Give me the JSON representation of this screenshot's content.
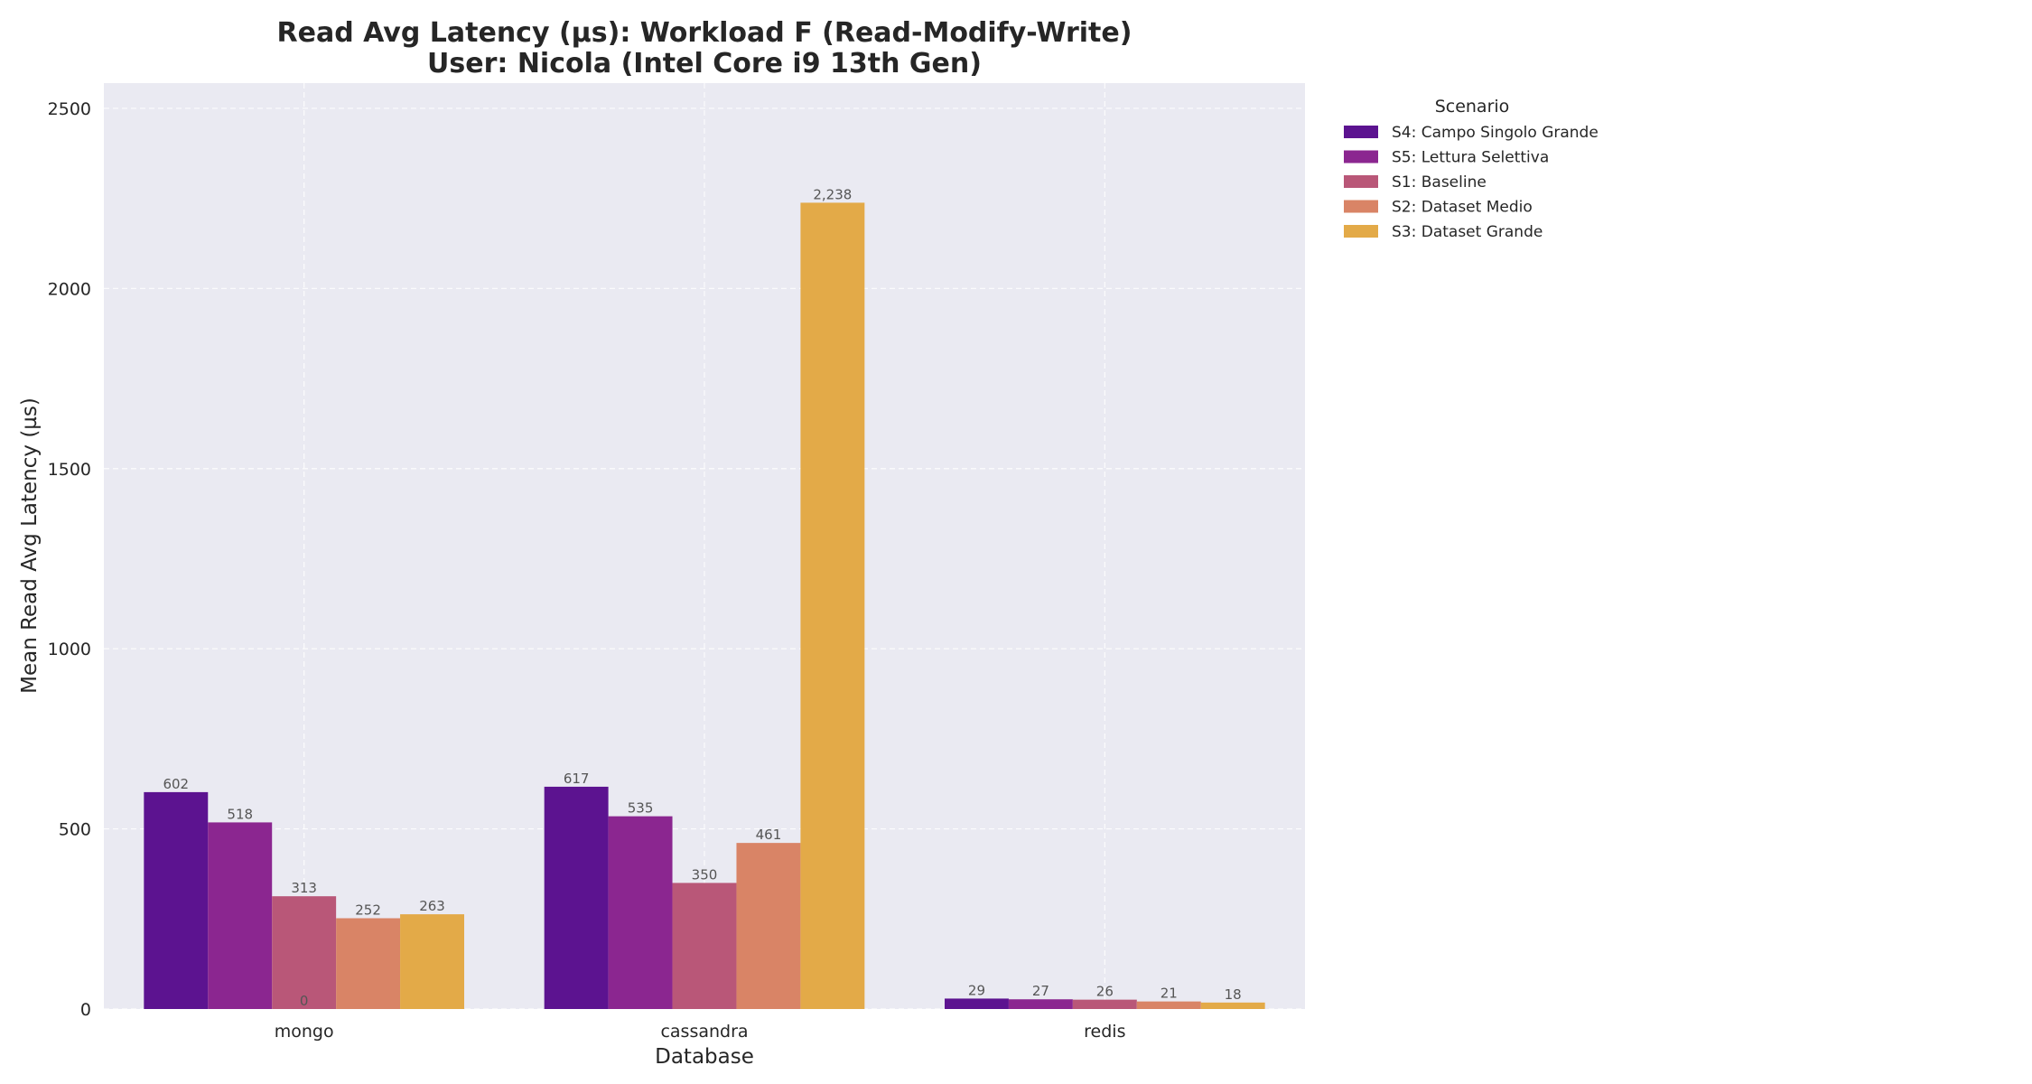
{
  "chart_data": {
    "type": "bar",
    "title": "Read Avg Latency (µs): Workload F (Read-Modify-Write)",
    "subtitle": "User: Nicola (Intel Core i9 13th Gen)",
    "xlabel": "Database",
    "ylabel": "Mean Read Avg Latency (µs)",
    "ylim": [
      0,
      2570
    ],
    "yticks": [
      0,
      500,
      1000,
      1500,
      2000,
      2500
    ],
    "ytick_labels": [
      "0",
      "500",
      "1000",
      "1500",
      "2000",
      "2500"
    ],
    "categories": [
      "mongo",
      "cassandra",
      "redis"
    ],
    "grid": true,
    "legend_placement": "outside-top-right",
    "legend_title": "Scenario",
    "series": [
      {
        "name": "S4: Campo Singolo Grande",
        "color": "#5c1390",
        "values": [
          602,
          617,
          29
        ],
        "labels": [
          "602",
          "617",
          "29"
        ]
      },
      {
        "name": "S5: Lettura Selettiva",
        "color": "#8b2690",
        "values": [
          518,
          535,
          27
        ],
        "labels": [
          "518",
          "535",
          "27"
        ]
      },
      {
        "name": "S1: Baseline",
        "color": "#b95778",
        "values": [
          313,
          350,
          26
        ],
        "labels": [
          "313",
          "350",
          "26"
        ]
      },
      {
        "name": "S2: Dataset Medio",
        "color": "#d98466",
        "values": [
          252,
          461,
          21
        ],
        "labels": [
          "252",
          "461",
          "21"
        ]
      },
      {
        "name": "S3: Dataset Grande",
        "color": "#e3aa48",
        "values": [
          263,
          2238,
          18
        ],
        "labels": [
          "263",
          "2,238",
          "18"
        ]
      }
    ],
    "annotations": [
      {
        "text": "0",
        "category": "mongo",
        "value": 0
      }
    ]
  }
}
